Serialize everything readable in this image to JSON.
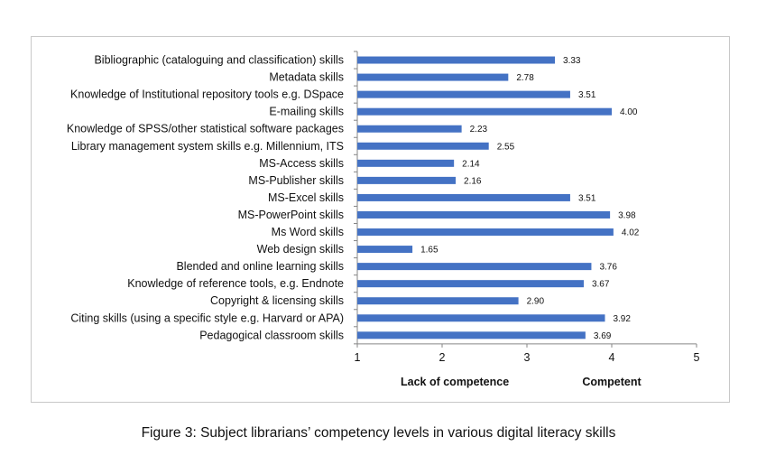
{
  "chart_data": {
    "type": "bar",
    "orientation": "horizontal",
    "categories": [
      "Bibliographic (cataloguing and classification) skills",
      "Metadata skills",
      "Knowledge of Institutional repository tools e.g. DSpace",
      "E-mailing skills",
      "Knowledge of SPSS/other statistical software packages",
      "Library management system skills e.g. Millennium, ITS",
      "MS-Access skills",
      "MS-Publisher skills",
      "MS-Excel skills",
      "MS-PowerPoint skills",
      "Ms Word skills",
      "Web design skills",
      "Blended and online learning skills",
      "Knowledge of reference tools, e.g. Endnote",
      "Copyright & licensing skills",
      "Citing skills (using a specific style e.g. Harvard or APA)",
      "Pedagogical classroom skills"
    ],
    "values": [
      3.33,
      2.78,
      3.51,
      4.0,
      2.23,
      2.55,
      2.14,
      2.16,
      3.51,
      3.98,
      4.02,
      1.65,
      3.76,
      3.67,
      2.9,
      3.92,
      3.69
    ],
    "value_labels": [
      "3.33",
      "2.78",
      "3.51",
      "4.00",
      "2.23",
      "2.55",
      "2.14",
      "2.16",
      "3.51",
      "3.98",
      "4.02",
      "1.65",
      "3.76",
      "3.67",
      "2.90",
      "3.92",
      "3.69"
    ],
    "xlim": [
      1,
      5
    ],
    "xticks": [
      "1",
      "2",
      "3",
      "4",
      "5"
    ],
    "axis_annotations": [
      "Lack of competence",
      "Competent"
    ],
    "grid": false,
    "bar_color": "#4472C4",
    "title": ""
  },
  "caption": "Figure 3: Subject librarians’ competency levels in various digital literacy skills"
}
